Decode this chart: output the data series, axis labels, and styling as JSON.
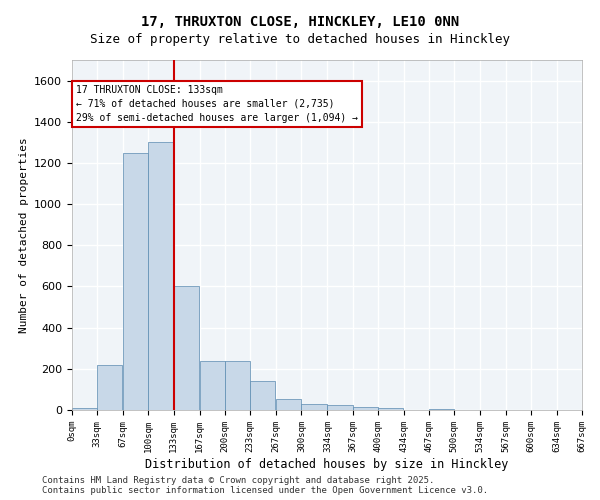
{
  "title_line1": "17, THRUXTON CLOSE, HINCKLEY, LE10 0NN",
  "title_line2": "Size of property relative to detached houses in Hinckley",
  "xlabel": "Distribution of detached houses by size in Hinckley",
  "ylabel": "Number of detached properties",
  "bar_color": "#c8d8e8",
  "bar_edge_color": "#5a8ab0",
  "background_color": "#f0f4f8",
  "grid_color": "#ffffff",
  "vline_x": 133,
  "vline_color": "#cc0000",
  "annotation_text": "17 THRUXTON CLOSE: 133sqm\n← 71% of detached houses are smaller (2,735)\n29% of semi-detached houses are larger (1,094) →",
  "annotation_box_color": "#cc0000",
  "bin_edges": [
    0,
    33,
    67,
    100,
    133,
    167,
    200,
    233,
    267,
    300,
    334,
    367,
    400,
    434,
    467,
    500,
    534,
    567,
    600,
    634,
    667
  ],
  "bar_heights": [
    10,
    220,
    1250,
    1300,
    600,
    240,
    240,
    140,
    55,
    30,
    25,
    15,
    10,
    0,
    5,
    0,
    0,
    0,
    0,
    0
  ],
  "ylim": [
    0,
    1700
  ],
  "yticks": [
    0,
    200,
    400,
    600,
    800,
    1000,
    1200,
    1400,
    1600
  ],
  "footer_text": "Contains HM Land Registry data © Crown copyright and database right 2025.\nContains public sector information licensed under the Open Government Licence v3.0.",
  "tick_labels": [
    "0sqm",
    "33sqm",
    "67sqm",
    "100sqm",
    "133sqm",
    "167sqm",
    "200sqm",
    "233sqm",
    "267sqm",
    "300sqm",
    "334sqm",
    "367sqm",
    "400sqm",
    "434sqm",
    "467sqm",
    "500sqm",
    "534sqm",
    "567sqm",
    "600sqm",
    "634sqm",
    "667sqm"
  ]
}
